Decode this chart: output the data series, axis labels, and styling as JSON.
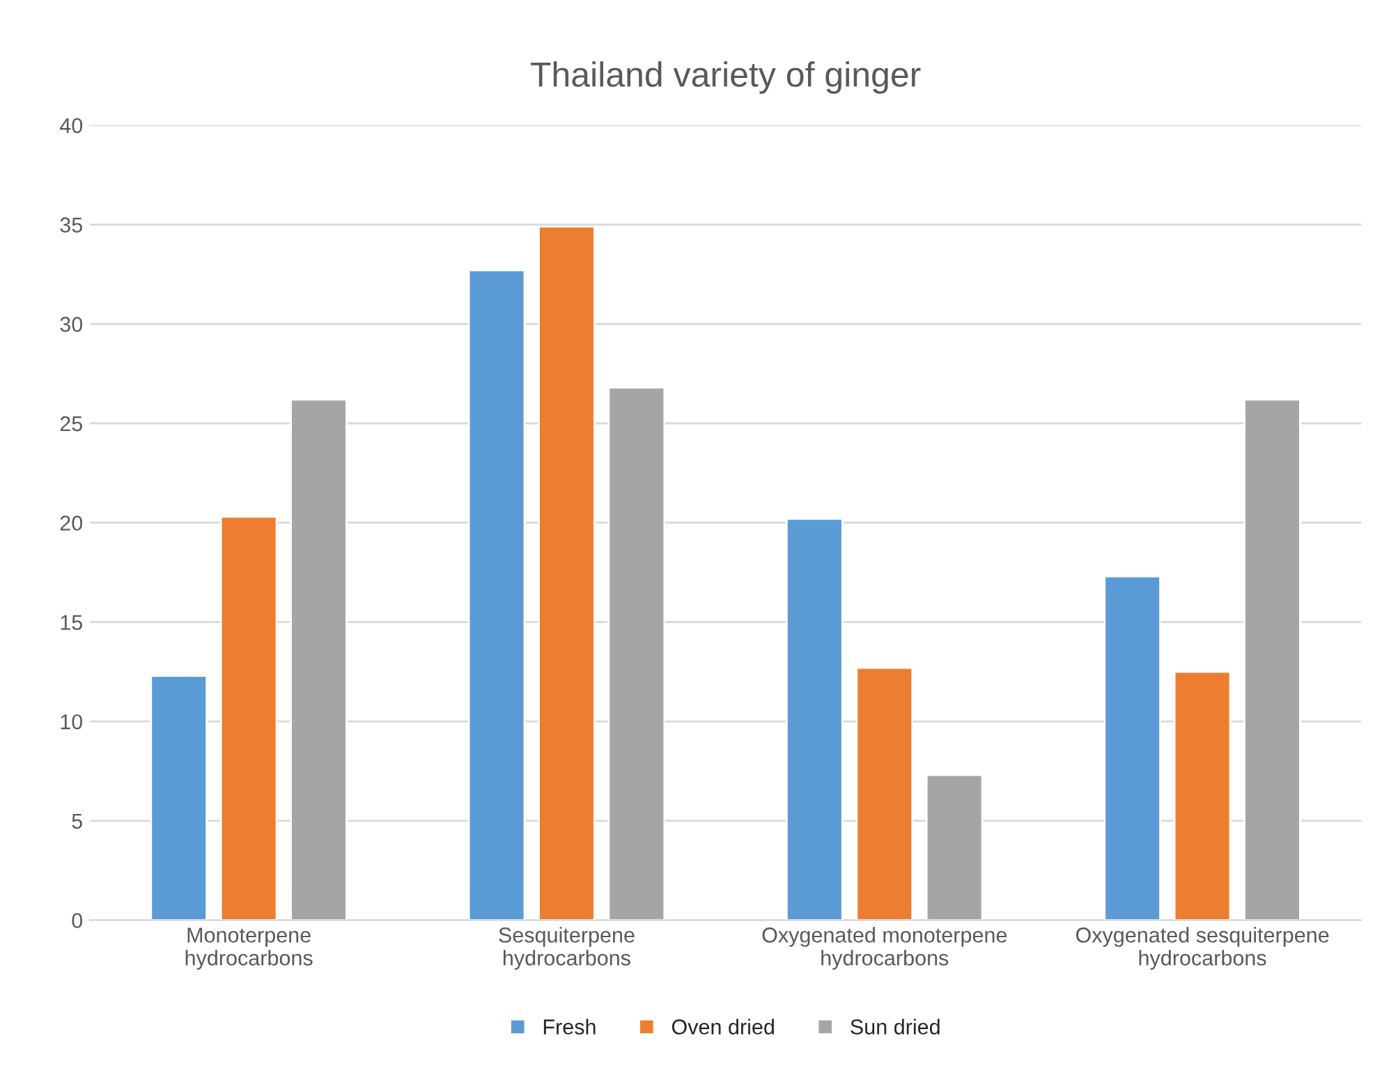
{
  "chart_data": {
    "type": "bar",
    "title": "Thailand variety of ginger",
    "categories": [
      "Monoterpene\nhydrocarbons",
      "Sesquiterpene\nhydrocarbons",
      "Oxygenated monoterpene\nhydrocarbons",
      "Oxygenated sesquiterpene\nhydrocarbons"
    ],
    "series": [
      {
        "name": "Fresh",
        "color": "#5b9bd5",
        "values": [
          12.3,
          32.7,
          20.2,
          17.3
        ]
      },
      {
        "name": "Oven dried",
        "color": "#ed7d31",
        "values": [
          20.3,
          34.9,
          12.7,
          12.5
        ]
      },
      {
        "name": "Sun dried",
        "color": "#a5a5a5",
        "values": [
          26.2,
          26.8,
          7.3,
          26.2
        ]
      }
    ],
    "ylim": [
      0,
      40
    ],
    "yticks": [
      0,
      5,
      10,
      15,
      20,
      25,
      30,
      35,
      40
    ],
    "grid": "y",
    "legend": "bottom"
  }
}
